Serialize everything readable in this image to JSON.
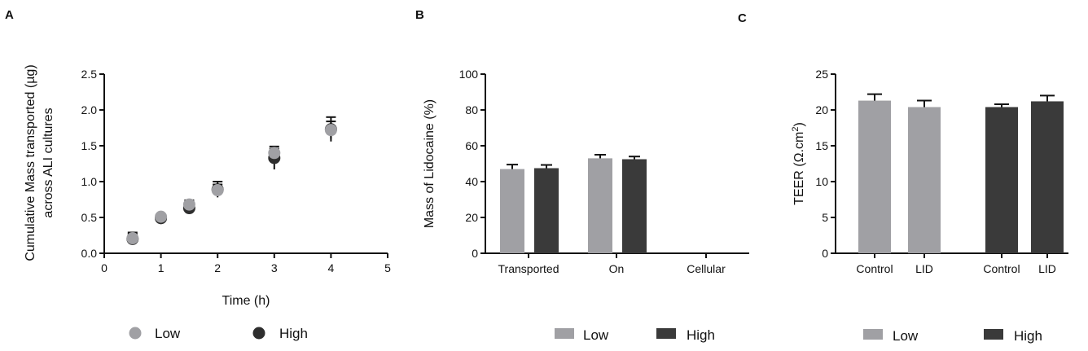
{
  "chart_data": [
    {
      "panel": "A",
      "type": "scatter",
      "xlabel": "Time (h)",
      "ylabel_line1": "Cumulative Mass transported (µg)",
      "ylabel_line2": "across ALI cultures",
      "xlim": [
        0,
        5
      ],
      "ylim": [
        0,
        2.5
      ],
      "xticks": [
        "0",
        "1",
        "2",
        "3",
        "4",
        "5"
      ],
      "yticks": [
        "0.0",
        "0.5",
        "1.0",
        "1.5",
        "2.0",
        "2.5"
      ],
      "series": [
        {
          "name": "Low",
          "color": "#a0a0a4",
          "x": [
            0.5,
            1,
            1.5,
            2,
            3,
            4
          ],
          "y": [
            0.21,
            0.51,
            0.68,
            0.88,
            1.4,
            1.72
          ],
          "err": [
            0.08,
            0.03,
            0.06,
            0.08,
            0.06,
            0.12
          ]
        },
        {
          "name": "High",
          "color": "#2e2e2e",
          "x": [
            0.5,
            1,
            1.5,
            2,
            3,
            4
          ],
          "y": [
            0.2,
            0.49,
            0.63,
            0.89,
            1.33,
            1.73
          ],
          "err": [
            0.07,
            0.03,
            0.08,
            0.11,
            0.16,
            0.17
          ]
        }
      ],
      "legend": [
        "Low",
        "High"
      ]
    },
    {
      "panel": "B",
      "type": "bar",
      "ylabel": "Mass of Lidocaine (%)",
      "ylim": [
        0,
        100
      ],
      "yticks": [
        "0",
        "20",
        "40",
        "60",
        "80",
        "100"
      ],
      "categories": [
        "Transported",
        "On",
        "Cellular"
      ],
      "series": [
        {
          "name": "Low",
          "color": "#a0a0a4",
          "values": [
            47,
            53,
            0
          ],
          "err": [
            2.5,
            2,
            0
          ]
        },
        {
          "name": "High",
          "color": "#3a3a3a",
          "values": [
            47.5,
            52.5,
            0
          ],
          "err": [
            1.8,
            1.5,
            0
          ]
        }
      ],
      "legend": [
        "Low",
        "High"
      ]
    },
    {
      "panel": "C",
      "type": "bar",
      "ylabel_text": "TEER (Ω.cm",
      "ylabel_sup": "2",
      "ylabel_close": ")",
      "ylim": [
        0,
        25
      ],
      "yticks": [
        "0",
        "5",
        "10",
        "15",
        "20",
        "25"
      ],
      "categories": [
        "Control",
        "LID",
        "Control",
        "LID"
      ],
      "bars": [
        {
          "series": "Low",
          "category": "Control",
          "value": 21.3,
          "err": 0.9
        },
        {
          "series": "Low",
          "category": "LID",
          "value": 20.4,
          "err": 0.9
        },
        {
          "series": "High",
          "category": "Control",
          "value": 20.4,
          "err": 0.4
        },
        {
          "series": "High",
          "category": "LID",
          "value": 21.2,
          "err": 0.8
        }
      ],
      "series_colors": {
        "Low": "#a0a0a4",
        "High": "#3a3a3a"
      },
      "legend": [
        "Low",
        "High"
      ]
    }
  ]
}
